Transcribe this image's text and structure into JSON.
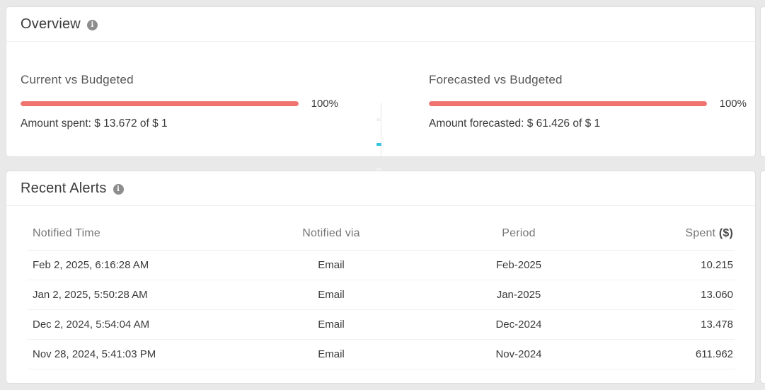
{
  "colors": {
    "page_background": "#e9e9e9",
    "progress_bar": "#f0736f",
    "tick_accent": "#35c5e2"
  },
  "overview": {
    "title": "Overview",
    "info_glyph": "i",
    "sections": [
      {
        "title": "Current vs Budgeted",
        "percent_label": "100%",
        "percent_width": "100%",
        "caption": "Amount spent: $ 13.672 of $ 1"
      },
      {
        "title": "Forecasted vs Budgeted",
        "percent_label": "100%",
        "percent_width": "100%",
        "caption": "Amount forecasted: $ 61.426 of $ 1"
      }
    ]
  },
  "alerts": {
    "title": "Recent Alerts",
    "info_glyph": "i",
    "header": {
      "time": "Notified Time",
      "via": "Notified via",
      "period": "Period",
      "spent": "Spent",
      "spent_unit": "($)"
    },
    "rows": [
      {
        "time": "Feb 2, 2025, 6:16:28 AM",
        "via": "Email",
        "period": "Feb-2025",
        "spent": "10.215"
      },
      {
        "time": "Jan 2, 2025, 5:50:28 AM",
        "via": "Email",
        "period": "Jan-2025",
        "spent": "13.060"
      },
      {
        "time": "Dec 2, 2024, 5:54:04 AM",
        "via": "Email",
        "period": "Dec-2024",
        "spent": "13.478"
      },
      {
        "time": "Nov 28, 2024, 5:41:03 PM",
        "via": "Email",
        "period": "Nov-2024",
        "spent": "611.962"
      }
    ]
  }
}
